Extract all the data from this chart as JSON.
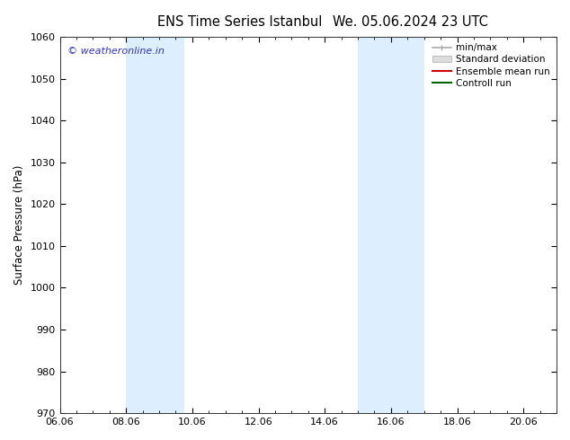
{
  "title_left": "ENS Time Series Istanbul",
  "title_right": "We. 05.06.2024 23 UTC",
  "ylabel": "Surface Pressure (hPa)",
  "ylim": [
    970,
    1060
  ],
  "yticks": [
    970,
    980,
    990,
    1000,
    1010,
    1020,
    1030,
    1040,
    1050,
    1060
  ],
  "xlim_start": 0.0,
  "xlim_end": 15.0,
  "xtick_labels": [
    "06.06",
    "08.06",
    "10.06",
    "12.06",
    "14.06",
    "16.06",
    "18.06",
    "20.06"
  ],
  "xtick_positions": [
    0,
    2,
    4,
    6,
    8,
    10,
    12,
    14
  ],
  "blue_bands": [
    {
      "x_start": 2.0,
      "x_end": 3.75
    },
    {
      "x_start": 9.0,
      "x_end": 11.0
    }
  ],
  "band_color": "#ddeeff",
  "background_color": "#ffffff",
  "watermark_text": "© weatheronline.in",
  "watermark_color": "#3333cc",
  "legend_labels": [
    "min/max",
    "Standard deviation",
    "Ensemble mean run",
    "Controll run"
  ],
  "legend_line_color": "#aaaaaa",
  "legend_std_color": "#dddddd",
  "legend_mean_color": "#cc0000",
  "legend_ctrl_color": "#006600",
  "title_fontsize": 10.5,
  "axis_label_fontsize": 8.5,
  "tick_fontsize": 8,
  "legend_fontsize": 7.5,
  "watermark_fontsize": 8
}
